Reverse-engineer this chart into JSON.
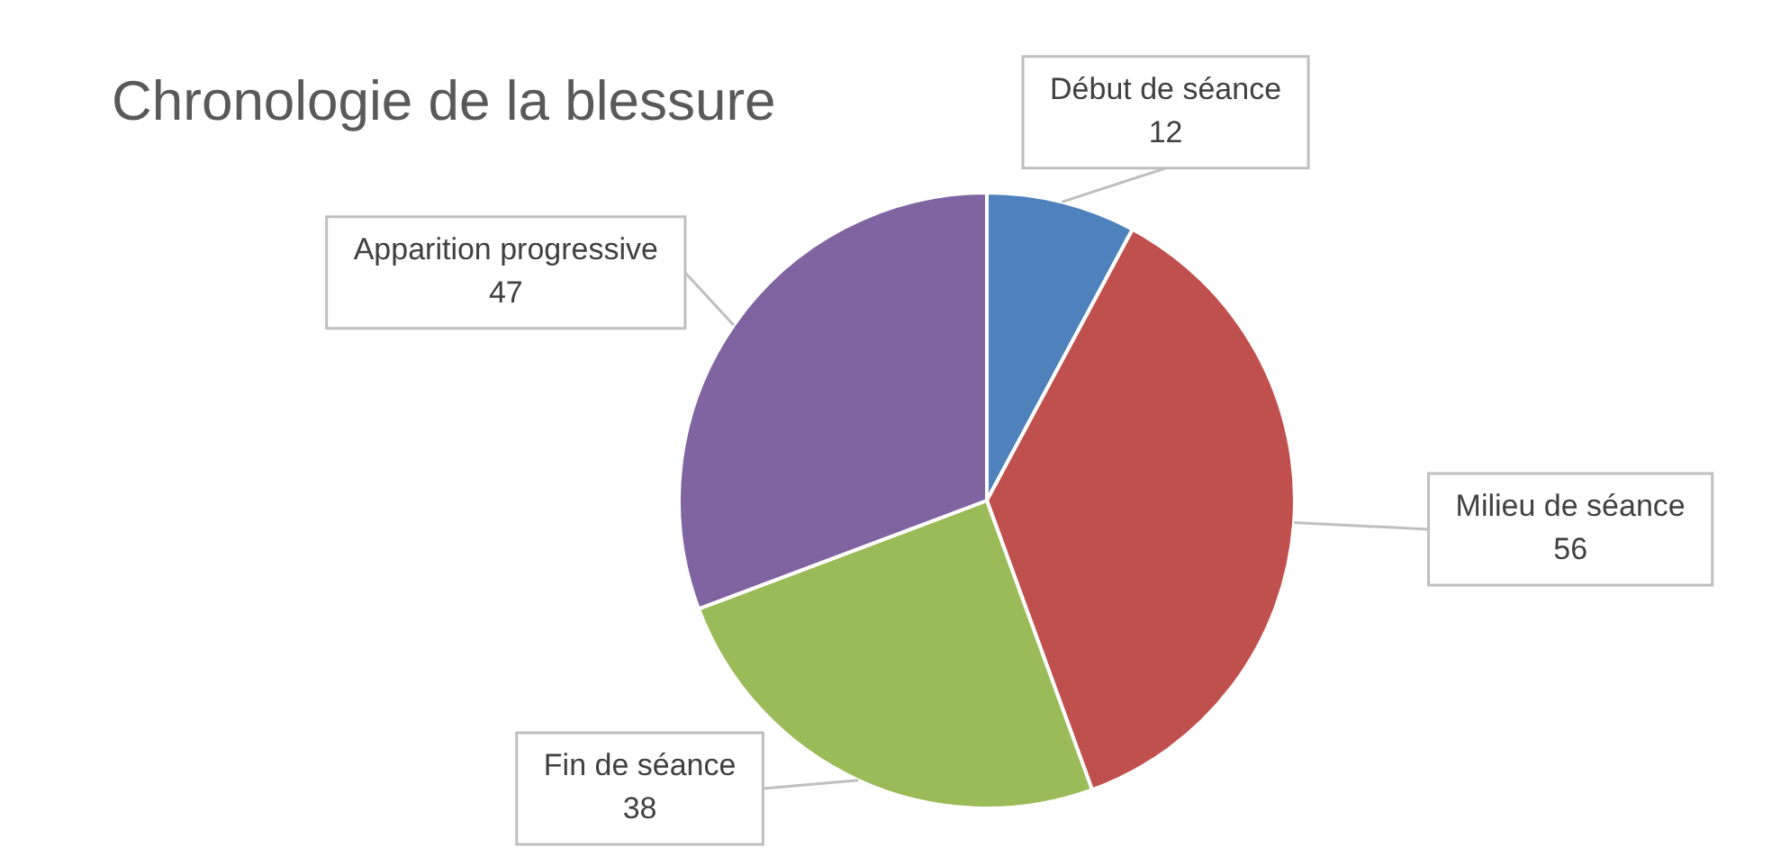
{
  "chart_data": {
    "type": "pie",
    "title": "Chronologie de la blessure",
    "categories": [
      "Début de séance",
      "Milieu de séance",
      "Fin de séance",
      "Apparition progressive"
    ],
    "values": [
      12,
      56,
      38,
      47
    ],
    "colors": [
      "#4f81bd",
      "#c0504d",
      "#9bbb59",
      "#8064a2"
    ],
    "data_labels": true,
    "legend": false
  }
}
